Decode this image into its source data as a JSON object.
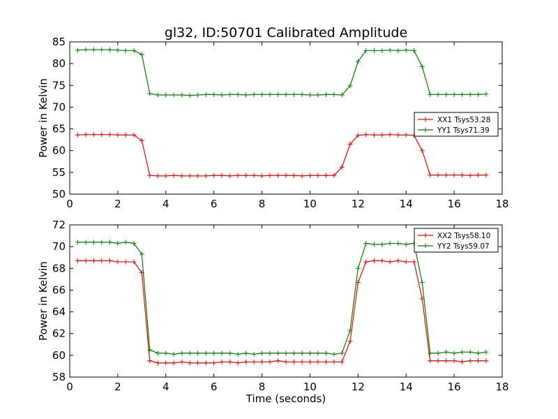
{
  "title": "gl32, ID:50701 Calibrated Amplitude",
  "chart_data": [
    {
      "type": "line",
      "ylabel": "Power in Kelvin",
      "xlabel": "",
      "xlim": [
        0,
        18
      ],
      "ylim": [
        50,
        85
      ],
      "xticks": [
        "0",
        "2",
        "4",
        "6",
        "8",
        "10",
        "12",
        "14",
        "16",
        "18"
      ],
      "yticks": [
        "50",
        "55",
        "60",
        "65",
        "70",
        "75",
        "80",
        "85"
      ],
      "grid": false,
      "legend_position": "center-right",
      "x": [
        0.33,
        0.67,
        1.0,
        1.33,
        1.67,
        2.0,
        2.33,
        2.67,
        3.0,
        3.33,
        3.67,
        4.0,
        4.33,
        4.67,
        5.0,
        5.33,
        5.67,
        6.0,
        6.33,
        6.67,
        7.0,
        7.33,
        7.67,
        8.0,
        8.33,
        8.67,
        9.0,
        9.33,
        9.67,
        10.0,
        10.33,
        10.67,
        11.0,
        11.33,
        11.67,
        12.0,
        12.33,
        12.67,
        13.0,
        13.33,
        13.67,
        14.0,
        14.33,
        14.67,
        15.0,
        15.33,
        15.67,
        16.0,
        16.33,
        16.67,
        17.0,
        17.33
      ],
      "series": [
        {
          "name": "XX1 Tsys53.28",
          "color": "#ff0000",
          "values": [
            63.6,
            63.7,
            63.7,
            63.7,
            63.7,
            63.6,
            63.6,
            63.6,
            62.3,
            54.3,
            54.2,
            54.2,
            54.3,
            54.2,
            54.2,
            54.2,
            54.2,
            54.3,
            54.3,
            54.2,
            54.3,
            54.3,
            54.3,
            54.2,
            54.3,
            54.3,
            54.3,
            54.3,
            54.2,
            54.3,
            54.3,
            54.3,
            54.3,
            56.2,
            61.5,
            63.5,
            63.7,
            63.6,
            63.6,
            63.7,
            63.6,
            63.6,
            63.5,
            60.0,
            54.4,
            54.4,
            54.4,
            54.4,
            54.4,
            54.3,
            54.4,
            54.4
          ]
        },
        {
          "name": "YY1 Tsys71.39",
          "color": "#008000",
          "values": [
            83.1,
            83.2,
            83.2,
            83.2,
            83.2,
            83.1,
            83.0,
            83.0,
            82.1,
            73.1,
            72.8,
            72.8,
            72.8,
            72.8,
            72.7,
            72.8,
            72.9,
            72.9,
            72.8,
            72.9,
            72.9,
            72.8,
            72.9,
            72.9,
            72.9,
            72.9,
            72.9,
            72.9,
            72.9,
            72.8,
            72.8,
            72.9,
            72.9,
            72.8,
            74.9,
            80.5,
            83.0,
            83.0,
            83.0,
            83.1,
            83.0,
            83.1,
            83.0,
            79.3,
            72.9,
            72.9,
            72.9,
            72.9,
            72.9,
            72.9,
            72.9,
            73.0
          ]
        }
      ]
    },
    {
      "type": "line",
      "ylabel": "Power in Kelvin",
      "xlabel": "Time (seconds)",
      "xlim": [
        0,
        18
      ],
      "ylim": [
        58,
        72
      ],
      "xticks": [
        "0",
        "2",
        "4",
        "6",
        "8",
        "10",
        "12",
        "14",
        "16",
        "18"
      ],
      "yticks": [
        "58",
        "60",
        "62",
        "64",
        "66",
        "68",
        "70",
        "72"
      ],
      "grid": false,
      "legend_position": "top-right",
      "x": [
        0.33,
        0.67,
        1.0,
        1.33,
        1.67,
        2.0,
        2.33,
        2.67,
        3.0,
        3.33,
        3.67,
        4.0,
        4.33,
        4.67,
        5.0,
        5.33,
        5.67,
        6.0,
        6.33,
        6.67,
        7.0,
        7.33,
        7.67,
        8.0,
        8.33,
        8.67,
        9.0,
        9.33,
        9.67,
        10.0,
        10.33,
        10.67,
        11.0,
        11.33,
        11.67,
        12.0,
        12.33,
        12.67,
        13.0,
        13.33,
        13.67,
        14.0,
        14.33,
        14.67,
        15.0,
        15.33,
        15.67,
        16.0,
        16.33,
        16.67,
        17.0,
        17.33
      ],
      "series": [
        {
          "name": "XX2 Tsys58.10",
          "color": "#ff0000",
          "values": [
            68.7,
            68.7,
            68.7,
            68.7,
            68.7,
            68.6,
            68.6,
            68.6,
            67.6,
            59.5,
            59.3,
            59.3,
            59.3,
            59.4,
            59.3,
            59.3,
            59.3,
            59.3,
            59.4,
            59.4,
            59.3,
            59.4,
            59.4,
            59.4,
            59.4,
            59.5,
            59.4,
            59.4,
            59.4,
            59.4,
            59.4,
            59.4,
            59.4,
            59.4,
            61.3,
            66.7,
            68.6,
            68.7,
            68.7,
            68.6,
            68.7,
            68.6,
            68.6,
            65.2,
            59.5,
            59.5,
            59.5,
            59.5,
            59.4,
            59.5,
            59.5,
            59.5
          ]
        },
        {
          "name": "YY2 Tsys59.07",
          "color": "#008000",
          "values": [
            70.4,
            70.4,
            70.4,
            70.4,
            70.4,
            70.3,
            70.4,
            70.3,
            69.3,
            60.5,
            60.2,
            60.2,
            60.1,
            60.2,
            60.2,
            60.2,
            60.2,
            60.2,
            60.2,
            60.2,
            60.1,
            60.2,
            60.1,
            60.2,
            60.2,
            60.2,
            60.2,
            60.2,
            60.2,
            60.2,
            60.2,
            60.2,
            60.1,
            60.2,
            62.3,
            68.0,
            70.3,
            70.2,
            70.2,
            70.3,
            70.3,
            70.2,
            70.3,
            66.7,
            60.2,
            60.2,
            60.3,
            60.2,
            60.3,
            60.3,
            60.2,
            60.3
          ]
        }
      ]
    }
  ]
}
